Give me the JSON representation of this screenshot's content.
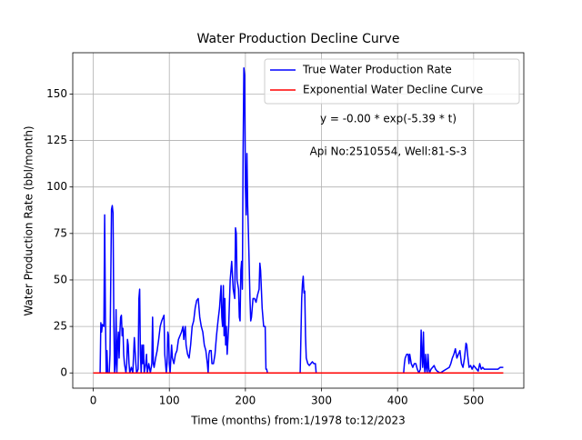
{
  "chart_data": {
    "type": "line",
    "title": "Water Production Decline Curve",
    "xlabel": "Time (months) from:1/1978 to:12/2023",
    "ylabel": "Water Production Rate (bbl/month)",
    "annotations": [
      "y = -0.00 * exp(-5.39 * t)",
      "Api No:2510554, Well:81-S-3"
    ],
    "xlim": [
      -26.95,
      565.95
    ],
    "ylim": [
      -8.2,
      172.2
    ],
    "xticks": [
      0,
      100,
      200,
      300,
      400,
      500
    ],
    "yticks": [
      0,
      25,
      50,
      75,
      100,
      125,
      150
    ],
    "grid": true,
    "legend": "upper right",
    "series": [
      {
        "name": "True Water Production Rate",
        "color": "#0000ff",
        "x": [
          0,
          9,
          10,
          11,
          12,
          14,
          15,
          16,
          17,
          18,
          19,
          21,
          22,
          24,
          25,
          26,
          27,
          28,
          29,
          30,
          31,
          32,
          33,
          34,
          35,
          36,
          37,
          38,
          39,
          40,
          41,
          43,
          44,
          45,
          46,
          47,
          48,
          50,
          52,
          54,
          55,
          56,
          57,
          59,
          60,
          61,
          62,
          63,
          64,
          65,
          66,
          67,
          69,
          70,
          71,
          73,
          75,
          77,
          78,
          79,
          80,
          82,
          84,
          86,
          88,
          90,
          92,
          93,
          94,
          95,
          96,
          97,
          98,
          99,
          100,
          101,
          103,
          104,
          106,
          108,
          110,
          112,
          114,
          116,
          118,
          119,
          120,
          121,
          122,
          124,
          126,
          128,
          130,
          132,
          134,
          136,
          138,
          140,
          142,
          144,
          146,
          148,
          150,
          151,
          152,
          153,
          155,
          156,
          158,
          160,
          162,
          164,
          166,
          168,
          169,
          170,
          171,
          172,
          173,
          174,
          175,
          176,
          178,
          180,
          182,
          184,
          186,
          187,
          188,
          189,
          191,
          192,
          193,
          194,
          195,
          196,
          197,
          198,
          199,
          200,
          201,
          202,
          203,
          204,
          206,
          207,
          208,
          210,
          212,
          214,
          216,
          218,
          219,
          220,
          221,
          222,
          224,
          226,
          227,
          228,
          229,
          272,
          274,
          275,
          276,
          277,
          278,
          279,
          280,
          282,
          284,
          286,
          288,
          290,
          292,
          293,
          408,
          409,
          410,
          412,
          414,
          415,
          416,
          418,
          420,
          422,
          424,
          426,
          428,
          430,
          431,
          432,
          433,
          434,
          435,
          436,
          437,
          438,
          439,
          440,
          441,
          442,
          444,
          446,
          448,
          450,
          452,
          456,
          460,
          464,
          468,
          470,
          472,
          474,
          476,
          478,
          480,
          482,
          484,
          486,
          488,
          490,
          491,
          492,
          494,
          496,
          498,
          500,
          502,
          504,
          506,
          508,
          510,
          512,
          514,
          516,
          520,
          524,
          528,
          532,
          535,
          539
        ],
        "values": [
          0,
          0,
          27,
          22,
          26,
          25,
          85,
          30,
          0,
          12,
          0,
          0,
          10,
          88,
          90,
          86,
          30,
          0,
          5,
          34,
          0,
          15,
          22,
          8,
          22,
          30,
          31,
          20,
          24,
          10,
          5,
          0,
          5,
          18,
          15,
          5,
          0,
          3,
          0,
          19,
          12,
          5,
          0,
          2,
          40,
          45,
          10,
          0,
          15,
          5,
          15,
          0,
          5,
          10,
          0,
          5,
          0,
          5,
          30,
          5,
          3,
          8,
          12,
          18,
          25,
          28,
          30,
          31,
          10,
          5,
          0,
          5,
          22,
          20,
          5,
          0,
          15,
          8,
          5,
          10,
          12,
          18,
          20,
          22,
          25,
          18,
          22,
          25,
          15,
          10,
          8,
          15,
          25,
          28,
          35,
          39,
          40,
          30,
          25,
          22,
          15,
          12,
          5,
          0,
          10,
          12,
          12,
          5,
          5,
          10,
          20,
          28,
          35,
          47,
          30,
          25,
          47,
          20,
          40,
          15,
          25,
          10,
          25,
          50,
          60,
          45,
          40,
          78,
          75,
          50,
          45,
          30,
          28,
          55,
          60,
          45,
          120,
          164,
          160,
          100,
          85,
          118,
          90,
          75,
          40,
          28,
          30,
          40,
          40,
          38,
          42,
          45,
          59,
          55,
          45,
          35,
          25,
          25,
          2,
          2,
          0,
          0,
          40,
          48,
          52,
          43,
          44,
          20,
          8,
          5,
          4,
          5,
          6,
          5,
          5,
          0,
          0,
          5,
          8,
          10,
          10,
          5,
          10,
          5,
          3,
          5,
          5,
          2,
          0,
          2,
          23,
          10,
          3,
          22,
          5,
          0,
          10,
          3,
          0,
          10,
          3,
          0,
          2,
          3,
          4,
          2,
          1,
          0,
          1,
          2,
          3,
          5,
          8,
          10,
          13,
          8,
          10,
          12,
          5,
          3,
          8,
          16,
          15,
          10,
          3,
          4,
          2,
          4,
          3,
          2,
          1,
          5,
          2,
          3,
          2,
          2,
          2,
          2,
          2,
          2,
          3,
          3
        ]
      },
      {
        "name": "Exponential Water Decline Curve",
        "color": "#ff0000",
        "x": [
          0,
          539
        ],
        "values": [
          0,
          0
        ]
      }
    ]
  }
}
